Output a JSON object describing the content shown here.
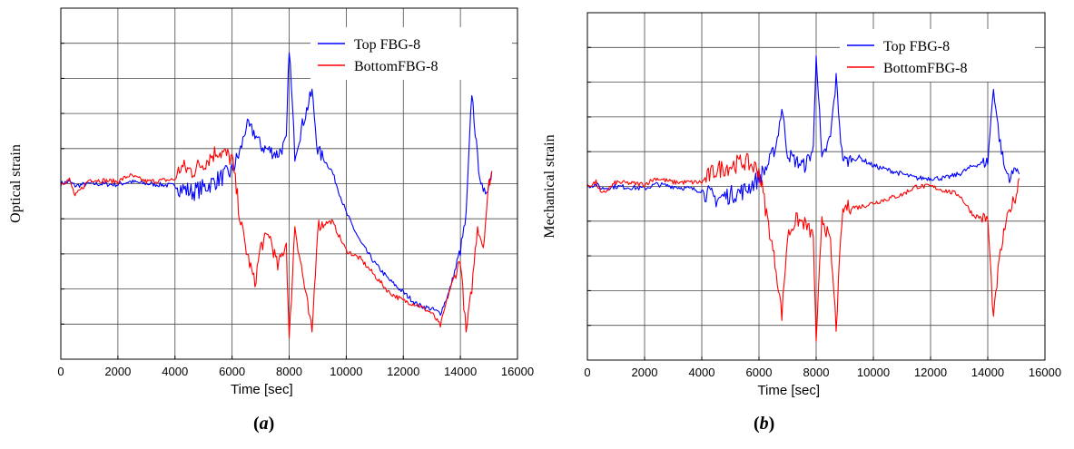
{
  "chart_data": [
    {
      "type": "line",
      "panel_label": "a",
      "xlabel": "Time [sec]",
      "ylabel": "Optical strain",
      "xlim": [
        0,
        16000
      ],
      "x_ticks": [
        0,
        2000,
        4000,
        6000,
        8000,
        10000,
        12000,
        14000,
        16000
      ],
      "y_gridlines": 10,
      "y_ticks_labeled": false,
      "grid": true,
      "legend_position": "top-right",
      "series": [
        {
          "name": "Top FBG-8",
          "color": "#0000ff",
          "x": [
            0,
            300,
            500,
            1000,
            2000,
            2400,
            3000,
            4000,
            4200,
            4600,
            5000,
            5500,
            6000,
            6300,
            6500,
            6800,
            7000,
            7300,
            7600,
            7900,
            8000,
            8200,
            8500,
            8800,
            9000,
            9500,
            10000,
            10500,
            11000,
            11500,
            12000,
            12500,
            13000,
            13300,
            13600,
            14000,
            14200,
            14400,
            14600,
            14800,
            15000,
            15100
          ],
          "y": [
            0,
            0.05,
            -0.05,
            0,
            -0.02,
            0.05,
            0,
            -0.05,
            -0.1,
            -0.2,
            -0.1,
            0.1,
            0.3,
            0.8,
            1.4,
            1.2,
            0.9,
            0.8,
            0.7,
            1.0,
            3.3,
            0.7,
            1.5,
            2.2,
            0.8,
            0.3,
            -0.7,
            -1.4,
            -1.9,
            -2.3,
            -2.6,
            -2.9,
            -3.0,
            -3.1,
            -2.6,
            -1.6,
            -0.8,
            2.2,
            0.6,
            -0.3,
            0,
            0.3
          ]
        },
        {
          "name": "BottomFBG-8",
          "color": "#ff0000",
          "x": [
            0,
            300,
            500,
            1000,
            2000,
            2400,
            3000,
            4000,
            4200,
            4600,
            5000,
            5500,
            6000,
            6300,
            6500,
            6800,
            7000,
            7300,
            7600,
            7900,
            8000,
            8200,
            8500,
            8800,
            9000,
            9500,
            10000,
            10500,
            11000,
            11500,
            12000,
            12500,
            13000,
            13300,
            13600,
            14000,
            14200,
            14400,
            14600,
            14800,
            15000,
            15100
          ],
          "y": [
            0,
            0.1,
            -0.3,
            0.1,
            0.05,
            0.2,
            0.05,
            0.1,
            0.4,
            0.3,
            0.5,
            0.8,
            0.6,
            -0.9,
            -1.6,
            -2.4,
            -1.5,
            -1.2,
            -2.0,
            -1.4,
            -3.8,
            -1.0,
            -2.3,
            -3.6,
            -1.0,
            -0.9,
            -1.6,
            -1.8,
            -2.2,
            -2.6,
            -2.8,
            -2.9,
            -3.1,
            -3.4,
            -2.6,
            -1.8,
            -3.6,
            -2.5,
            -1.0,
            -1.5,
            0,
            0.3
          ]
        }
      ]
    },
    {
      "type": "line",
      "panel_label": "b",
      "xlabel": "Time [sec]",
      "ylabel": "Mechanical strain",
      "xlim": [
        0,
        16000
      ],
      "x_ticks": [
        0,
        2000,
        4000,
        6000,
        8000,
        10000,
        12000,
        14000,
        16000
      ],
      "y_gridlines": 10,
      "y_ticks_labeled": false,
      "grid": true,
      "legend_position": "top-right",
      "series": [
        {
          "name": "Top FBG-8",
          "color": "#0000ff",
          "x": [
            0,
            300,
            500,
            1000,
            2000,
            2400,
            3000,
            4000,
            4500,
            5000,
            5500,
            6000,
            6300,
            6600,
            6800,
            7000,
            7300,
            7600,
            7900,
            8000,
            8200,
            8500,
            8700,
            8900,
            9000,
            9500,
            10000,
            10500,
            11000,
            11500,
            12000,
            12500,
            13000,
            13500,
            14000,
            14200,
            14400,
            14600,
            14800,
            15000,
            15100
          ],
          "y": [
            0,
            0.05,
            -0.05,
            0,
            -0.05,
            0.05,
            0,
            -0.1,
            -0.3,
            -0.2,
            -0.1,
            0.2,
            0.5,
            1.0,
            1.9,
            0.8,
            0.6,
            0.5,
            0.9,
            3.3,
            0.6,
            1.2,
            2.6,
            0.8,
            0.6,
            0.7,
            0.5,
            0.4,
            0.3,
            0.2,
            0.2,
            0.2,
            0.3,
            0.5,
            0.6,
            2.4,
            1.2,
            0.4,
            0.2,
            0.5,
            0.3
          ]
        },
        {
          "name": "BottomFBG-8",
          "color": "#ff0000",
          "x": [
            0,
            300,
            500,
            1000,
            2000,
            2400,
            3000,
            4000,
            4500,
            5000,
            5500,
            6000,
            6300,
            6600,
            6800,
            7000,
            7300,
            7600,
            7900,
            8000,
            8200,
            8500,
            8700,
            8900,
            9000,
            9500,
            10000,
            10500,
            11000,
            11500,
            12000,
            12500,
            13000,
            13500,
            14000,
            14200,
            14400,
            14600,
            14800,
            15000,
            15100
          ],
          "y": [
            0,
            0.1,
            -0.2,
            0.1,
            0.05,
            0.2,
            0.1,
            0.1,
            0.4,
            0.5,
            0.6,
            0.4,
            -0.8,
            -2.0,
            -3.1,
            -1.2,
            -0.8,
            -0.9,
            -1.2,
            -3.9,
            -0.7,
            -1.4,
            -3.4,
            -0.8,
            -0.5,
            -0.5,
            -0.4,
            -0.3,
            -0.2,
            0,
            0,
            -0.1,
            -0.2,
            -0.7,
            -0.8,
            -3.2,
            -1.8,
            -1.0,
            -0.5,
            -0.2,
            0.2
          ]
        }
      ]
    }
  ],
  "captions": {
    "a_letter": "a",
    "b_letter": "b",
    "open": "(",
    "close": ")"
  }
}
